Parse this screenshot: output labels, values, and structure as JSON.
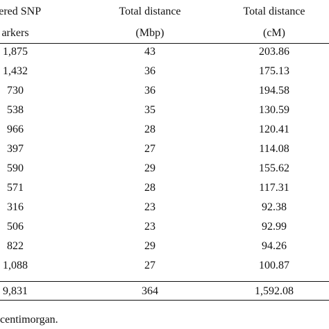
{
  "headers": {
    "col1_line1": "iltered SNP",
    "col1_line2": "arkers",
    "col2_line1": "Total distance",
    "col2_line2": "(Mbp)",
    "col3_line1": "Total distance",
    "col3_line2": "(cM)"
  },
  "rows": [
    {
      "markers": "1,875",
      "mbp": "43",
      "cm": "203.86"
    },
    {
      "markers": "1,432",
      "mbp": "36",
      "cm": "175.13"
    },
    {
      "markers": "730",
      "mbp": "36",
      "cm": "194.58"
    },
    {
      "markers": "538",
      "mbp": "35",
      "cm": "130.59"
    },
    {
      "markers": "966",
      "mbp": "28",
      "cm": "120.41"
    },
    {
      "markers": "397",
      "mbp": "27",
      "cm": "114.08"
    },
    {
      "markers": "590",
      "mbp": "29",
      "cm": "155.62"
    },
    {
      "markers": "571",
      "mbp": "28",
      "cm": "117.31"
    },
    {
      "markers": "316",
      "mbp": "23",
      "cm": "92.38"
    },
    {
      "markers": "506",
      "mbp": "23",
      "cm": "92.99"
    },
    {
      "markers": "822",
      "mbp": "29",
      "cm": "94.26"
    },
    {
      "markers": "1,088",
      "mbp": "27",
      "cm": "100.87"
    }
  ],
  "total": {
    "markers": "9,831",
    "mbp": "364",
    "cm": "1,592.08"
  },
  "footnote": "centimorgan."
}
